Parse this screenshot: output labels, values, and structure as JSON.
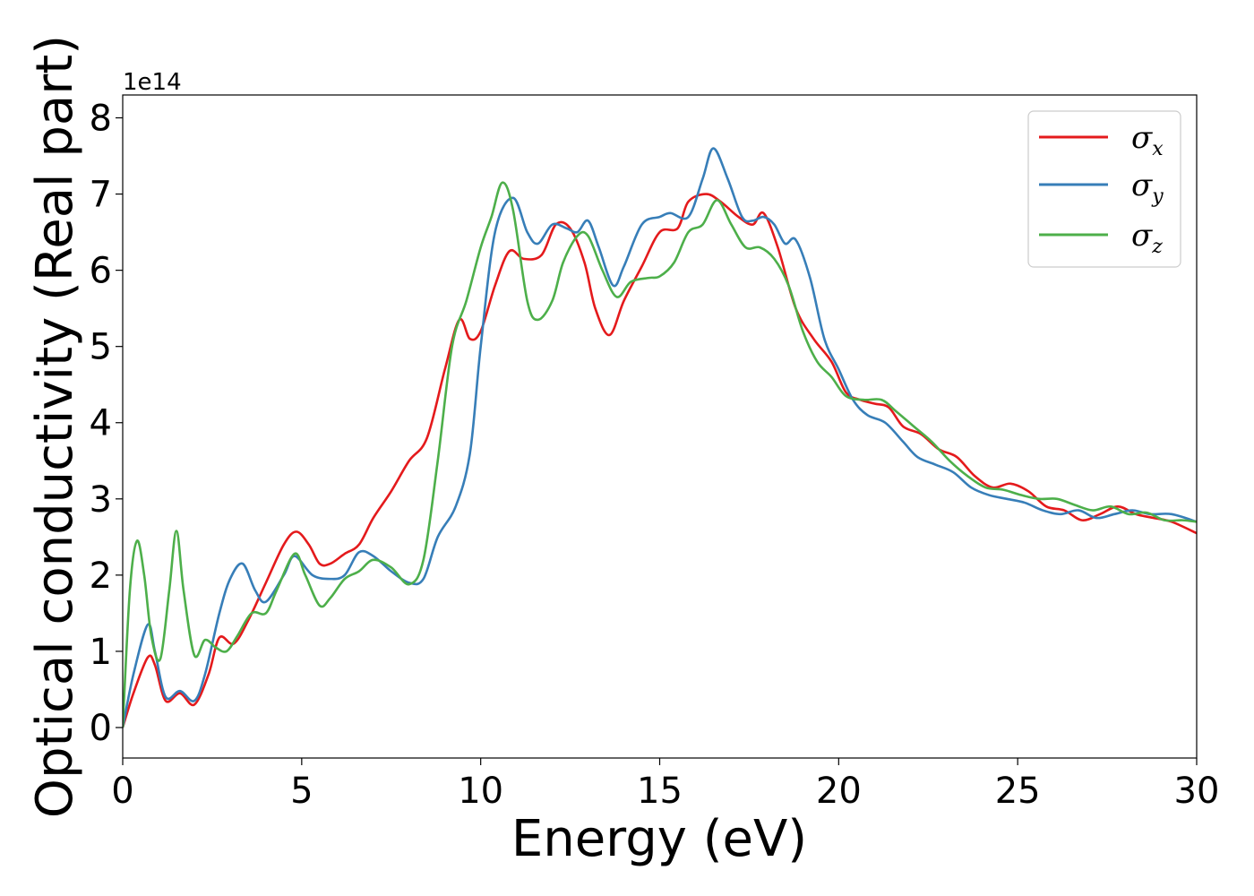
{
  "chart_data": {
    "type": "line",
    "title": "",
    "xlabel": "Energy (eV)",
    "ylabel": "Optical conductivity (Real part)",
    "y_offset_label": "1e14",
    "xlim": [
      0,
      30
    ],
    "ylim": [
      -0.4,
      8.3
    ],
    "x_ticks": [
      0,
      5,
      10,
      15,
      20,
      25,
      30
    ],
    "y_ticks": [
      0,
      1,
      2,
      3,
      4,
      5,
      6,
      7,
      8
    ],
    "grid": false,
    "legend_position": "top-right",
    "colors": {
      "sigma_x": "#e41a1c",
      "sigma_y": "#377eb8",
      "sigma_z": "#4daf4a"
    },
    "series": [
      {
        "name": "σx",
        "symbol": "σ",
        "subscript": "x",
        "color": "#e41a1c",
        "points": [
          [
            0,
            0
          ],
          [
            0.3,
            0.45
          ],
          [
            0.7,
            0.92
          ],
          [
            0.9,
            0.82
          ],
          [
            1.2,
            0.35
          ],
          [
            1.6,
            0.45
          ],
          [
            2.0,
            0.3
          ],
          [
            2.4,
            0.7
          ],
          [
            2.7,
            1.18
          ],
          [
            3.1,
            1.1
          ],
          [
            3.5,
            1.4
          ],
          [
            4.0,
            1.9
          ],
          [
            4.5,
            2.4
          ],
          [
            4.85,
            2.57
          ],
          [
            5.2,
            2.4
          ],
          [
            5.5,
            2.15
          ],
          [
            5.8,
            2.15
          ],
          [
            6.2,
            2.28
          ],
          [
            6.6,
            2.4
          ],
          [
            7.0,
            2.75
          ],
          [
            7.5,
            3.1
          ],
          [
            8.0,
            3.5
          ],
          [
            8.5,
            3.8
          ],
          [
            9.0,
            4.7
          ],
          [
            9.4,
            5.35
          ],
          [
            9.7,
            5.1
          ],
          [
            10.0,
            5.2
          ],
          [
            10.4,
            5.8
          ],
          [
            10.8,
            6.25
          ],
          [
            11.2,
            6.15
          ],
          [
            11.7,
            6.2
          ],
          [
            12.1,
            6.6
          ],
          [
            12.5,
            6.55
          ],
          [
            12.9,
            6.1
          ],
          [
            13.2,
            5.5
          ],
          [
            13.6,
            5.15
          ],
          [
            14.0,
            5.6
          ],
          [
            14.5,
            6.05
          ],
          [
            15.0,
            6.5
          ],
          [
            15.5,
            6.55
          ],
          [
            15.8,
            6.9
          ],
          [
            16.3,
            7.0
          ],
          [
            16.7,
            6.9
          ],
          [
            17.2,
            6.7
          ],
          [
            17.6,
            6.6
          ],
          [
            17.9,
            6.75
          ],
          [
            18.3,
            6.3
          ],
          [
            18.8,
            5.5
          ],
          [
            19.3,
            5.1
          ],
          [
            19.8,
            4.8
          ],
          [
            20.2,
            4.4
          ],
          [
            20.6,
            4.3
          ],
          [
            21.0,
            4.25
          ],
          [
            21.4,
            4.2
          ],
          [
            21.8,
            3.95
          ],
          [
            22.3,
            3.85
          ],
          [
            22.8,
            3.65
          ],
          [
            23.3,
            3.55
          ],
          [
            23.8,
            3.3
          ],
          [
            24.3,
            3.15
          ],
          [
            24.8,
            3.2
          ],
          [
            25.3,
            3.1
          ],
          [
            25.8,
            2.9
          ],
          [
            26.3,
            2.85
          ],
          [
            26.8,
            2.72
          ],
          [
            27.3,
            2.8
          ],
          [
            27.8,
            2.9
          ],
          [
            28.3,
            2.8
          ],
          [
            28.8,
            2.75
          ],
          [
            29.3,
            2.7
          ],
          [
            30.0,
            2.55
          ]
        ]
      },
      {
        "name": "σy",
        "symbol": "σ",
        "subscript": "y",
        "color": "#377eb8",
        "points": [
          [
            0,
            0
          ],
          [
            0.3,
            0.7
          ],
          [
            0.7,
            1.35
          ],
          [
            0.9,
            1.0
          ],
          [
            1.2,
            0.4
          ],
          [
            1.6,
            0.48
          ],
          [
            2.0,
            0.35
          ],
          [
            2.3,
            0.7
          ],
          [
            2.7,
            1.5
          ],
          [
            3.0,
            1.95
          ],
          [
            3.35,
            2.15
          ],
          [
            3.7,
            1.8
          ],
          [
            4.0,
            1.65
          ],
          [
            4.5,
            2.0
          ],
          [
            4.8,
            2.25
          ],
          [
            5.3,
            2.0
          ],
          [
            5.8,
            1.95
          ],
          [
            6.2,
            2.0
          ],
          [
            6.6,
            2.3
          ],
          [
            7.0,
            2.25
          ],
          [
            7.5,
            2.05
          ],
          [
            8.0,
            1.9
          ],
          [
            8.4,
            1.95
          ],
          [
            8.8,
            2.5
          ],
          [
            9.3,
            2.9
          ],
          [
            9.7,
            3.6
          ],
          [
            10.0,
            5.0
          ],
          [
            10.4,
            6.5
          ],
          [
            10.9,
            6.95
          ],
          [
            11.3,
            6.5
          ],
          [
            11.6,
            6.35
          ],
          [
            12.0,
            6.6
          ],
          [
            12.4,
            6.55
          ],
          [
            12.7,
            6.5
          ],
          [
            13.0,
            6.65
          ],
          [
            13.3,
            6.3
          ],
          [
            13.7,
            5.8
          ],
          [
            14.0,
            6.05
          ],
          [
            14.5,
            6.6
          ],
          [
            15.0,
            6.7
          ],
          [
            15.3,
            6.75
          ],
          [
            15.8,
            6.7
          ],
          [
            16.2,
            7.2
          ],
          [
            16.5,
            7.6
          ],
          [
            16.9,
            7.2
          ],
          [
            17.3,
            6.7
          ],
          [
            17.6,
            6.65
          ],
          [
            17.9,
            6.7
          ],
          [
            18.2,
            6.6
          ],
          [
            18.5,
            6.35
          ],
          [
            18.8,
            6.4
          ],
          [
            19.2,
            5.9
          ],
          [
            19.6,
            5.1
          ],
          [
            20.0,
            4.7
          ],
          [
            20.4,
            4.3
          ],
          [
            20.8,
            4.1
          ],
          [
            21.3,
            4.0
          ],
          [
            21.8,
            3.75
          ],
          [
            22.2,
            3.55
          ],
          [
            22.7,
            3.45
          ],
          [
            23.2,
            3.35
          ],
          [
            23.7,
            3.15
          ],
          [
            24.2,
            3.05
          ],
          [
            24.7,
            3.0
          ],
          [
            25.2,
            2.95
          ],
          [
            25.7,
            2.85
          ],
          [
            26.2,
            2.8
          ],
          [
            26.7,
            2.85
          ],
          [
            27.2,
            2.75
          ],
          [
            27.7,
            2.8
          ],
          [
            28.2,
            2.85
          ],
          [
            28.7,
            2.8
          ],
          [
            29.3,
            2.8
          ],
          [
            30.0,
            2.7
          ]
        ]
      },
      {
        "name": "σz",
        "symbol": "σ",
        "subscript": "z",
        "color": "#4daf4a",
        "points": [
          [
            0,
            0
          ],
          [
            0.2,
            1.8
          ],
          [
            0.4,
            2.45
          ],
          [
            0.6,
            2.0
          ],
          [
            0.8,
            1.2
          ],
          [
            1.05,
            0.9
          ],
          [
            1.3,
            1.8
          ],
          [
            1.5,
            2.58
          ],
          [
            1.7,
            1.8
          ],
          [
            2.0,
            0.95
          ],
          [
            2.3,
            1.15
          ],
          [
            2.6,
            1.05
          ],
          [
            2.9,
            1.0
          ],
          [
            3.2,
            1.2
          ],
          [
            3.6,
            1.5
          ],
          [
            4.0,
            1.5
          ],
          [
            4.3,
            1.8
          ],
          [
            4.8,
            2.28
          ],
          [
            5.1,
            2.0
          ],
          [
            5.5,
            1.6
          ],
          [
            5.8,
            1.7
          ],
          [
            6.2,
            1.95
          ],
          [
            6.6,
            2.05
          ],
          [
            7.0,
            2.2
          ],
          [
            7.5,
            2.1
          ],
          [
            8.0,
            1.88
          ],
          [
            8.4,
            2.2
          ],
          [
            8.8,
            3.5
          ],
          [
            9.2,
            5.0
          ],
          [
            9.6,
            5.6
          ],
          [
            10.0,
            6.3
          ],
          [
            10.3,
            6.7
          ],
          [
            10.6,
            7.15
          ],
          [
            10.9,
            6.8
          ],
          [
            11.3,
            5.6
          ],
          [
            11.6,
            5.35
          ],
          [
            12.0,
            5.6
          ],
          [
            12.3,
            6.1
          ],
          [
            12.7,
            6.45
          ],
          [
            13.0,
            6.45
          ],
          [
            13.4,
            6.0
          ],
          [
            13.8,
            5.65
          ],
          [
            14.2,
            5.85
          ],
          [
            14.7,
            5.9
          ],
          [
            15.0,
            5.92
          ],
          [
            15.4,
            6.1
          ],
          [
            15.8,
            6.5
          ],
          [
            16.2,
            6.6
          ],
          [
            16.6,
            6.92
          ],
          [
            17.0,
            6.6
          ],
          [
            17.4,
            6.3
          ],
          [
            17.8,
            6.3
          ],
          [
            18.2,
            6.15
          ],
          [
            18.6,
            5.8
          ],
          [
            19.0,
            5.2
          ],
          [
            19.4,
            4.8
          ],
          [
            19.8,
            4.6
          ],
          [
            20.2,
            4.35
          ],
          [
            20.7,
            4.3
          ],
          [
            21.2,
            4.3
          ],
          [
            21.6,
            4.15
          ],
          [
            22.1,
            3.95
          ],
          [
            22.6,
            3.75
          ],
          [
            23.1,
            3.5
          ],
          [
            23.6,
            3.3
          ],
          [
            24.1,
            3.15
          ],
          [
            24.6,
            3.12
          ],
          [
            25.1,
            3.05
          ],
          [
            25.6,
            3.0
          ],
          [
            26.1,
            3.0
          ],
          [
            26.6,
            2.92
          ],
          [
            27.1,
            2.85
          ],
          [
            27.6,
            2.9
          ],
          [
            28.1,
            2.8
          ],
          [
            28.6,
            2.82
          ],
          [
            29.1,
            2.72
          ],
          [
            29.6,
            2.72
          ],
          [
            30.0,
            2.7
          ]
        ]
      }
    ]
  }
}
